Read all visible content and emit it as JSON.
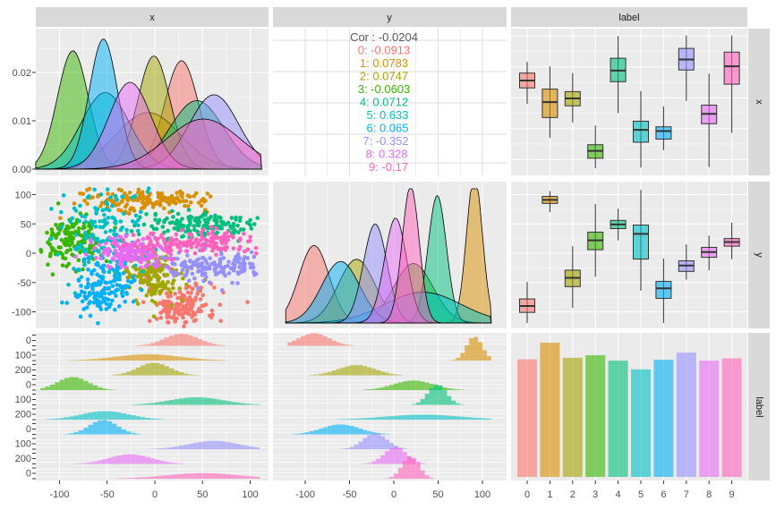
{
  "chart_data": {
    "type": "pairs",
    "variables": [
      "x",
      "y",
      "label"
    ],
    "labels": [
      "0",
      "1",
      "2",
      "3",
      "4",
      "5",
      "6",
      "7",
      "8",
      "9"
    ],
    "colors": [
      "#F8766D",
      "#D89000",
      "#A3A500",
      "#39B600",
      "#00BF7D",
      "#00BFC4",
      "#00B0F6",
      "#9590FF",
      "#E76BF3",
      "#FF62BC"
    ],
    "correlation": {
      "overall": "Cor : -0.0204",
      "by_label": [
        "0: -0.0913",
        "1: 0.0783",
        "2: 0.0747",
        "3: -0.0603",
        "4: 0.0712",
        "5: 0.633",
        "6: 0.065",
        "7: -0.352",
        "8: 0.328",
        "9: -0.17"
      ]
    },
    "x_ticks": [
      "-100",
      "-50",
      "0",
      "50",
      "100"
    ],
    "x_tick_values": [
      -100,
      -50,
      0,
      50,
      100
    ],
    "label_ticks": [
      "0",
      "1",
      "2",
      "3",
      "4",
      "5",
      "6",
      "7",
      "8",
      "9"
    ],
    "density_y_ticks": [
      "0.00",
      "0.01",
      "0.02"
    ],
    "density_y_values": [
      0,
      0.01,
      0.02
    ],
    "y_ticks": [
      "100",
      "50",
      "0",
      "-50",
      "-100"
    ],
    "y_tick_values": [
      100,
      50,
      0,
      -50,
      -100
    ],
    "hist_y_ticks": [
      "0",
      "100",
      "200"
    ],
    "box_x": [
      {
        "low": -10,
        "q1": 16,
        "median": 28,
        "q3": 40,
        "high": 58
      },
      {
        "low": -65,
        "q1": -32,
        "median": -7,
        "q3": 14,
        "high": 51
      },
      {
        "low": -40,
        "q1": -13,
        "median": -1,
        "q3": 10,
        "high": 40
      },
      {
        "low": -114,
        "q1": -98,
        "median": -86,
        "q3": -76,
        "high": -45
      },
      {
        "low": -25,
        "q1": 26,
        "median": 44,
        "q3": 64,
        "high": 100
      },
      {
        "low": -113,
        "q1": -72,
        "median": -52,
        "q3": -38,
        "high": 11
      },
      {
        "low": -85,
        "q1": -67,
        "median": -54,
        "q3": -47,
        "high": -14
      },
      {
        "low": -5,
        "q1": 45,
        "median": 62,
        "q3": 80,
        "high": 101
      },
      {
        "low": -112,
        "q1": -42,
        "median": -26,
        "q3": -12,
        "high": 39
      },
      {
        "low": -57,
        "q1": 22,
        "median": 51,
        "q3": 74,
        "high": 101
      }
    ],
    "box_y": [
      {
        "low": -119,
        "q1": -101,
        "median": -90,
        "q3": -78,
        "high": -49
      },
      {
        "low": 70,
        "q1": 85,
        "median": 91,
        "q3": 97,
        "high": 106
      },
      {
        "low": -93,
        "q1": -57,
        "median": -42,
        "q3": -29,
        "high": 12
      },
      {
        "low": -40,
        "q1": 6,
        "median": 22,
        "q3": 36,
        "high": 84
      },
      {
        "low": 22,
        "q1": 42,
        "median": 49,
        "q3": 56,
        "high": 76
      },
      {
        "low": -64,
        "q1": -10,
        "median": 33,
        "q3": 48,
        "high": 108
      },
      {
        "low": -119,
        "q1": -77,
        "median": -60,
        "q3": -48,
        "high": -9
      },
      {
        "low": -45,
        "q1": -31,
        "median": -21,
        "q3": -13,
        "high": 15
      },
      {
        "low": -29,
        "q1": -7,
        "median": 2,
        "q3": 10,
        "high": 30
      },
      {
        "low": -10,
        "q1": 12,
        "median": 19,
        "q3": 25,
        "high": 52
      }
    ],
    "label_counts": [
      6903,
      7877,
      6990,
      7141,
      6824,
      6313,
      6876,
      7293,
      6825,
      6958
    ]
  }
}
